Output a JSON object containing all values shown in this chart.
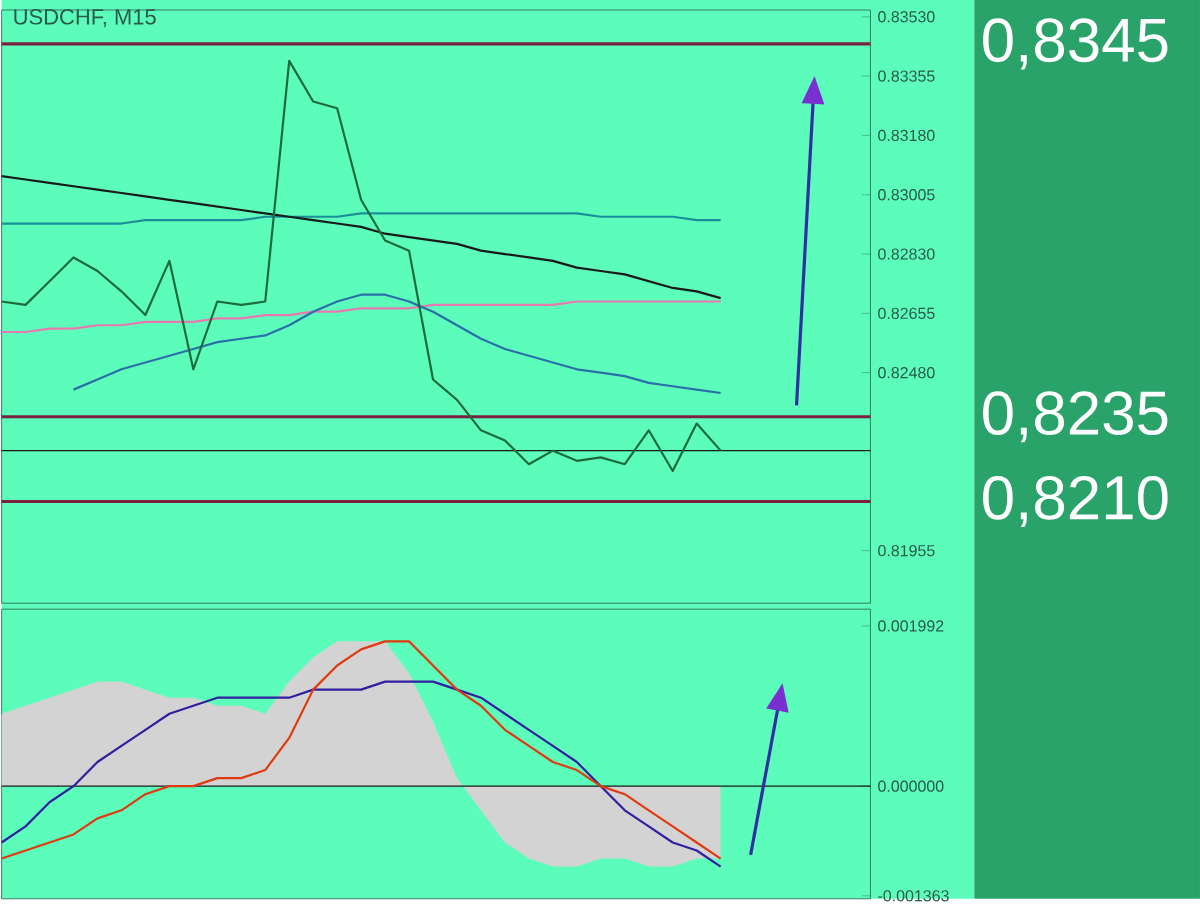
{
  "chart_data": [
    {
      "type": "line",
      "title": "USDCHF, M15",
      "tick_labels": "y",
      "categories": [
        null,
        null,
        null,
        null,
        null,
        null,
        null,
        null,
        null,
        null,
        null,
        null,
        null,
        null,
        null,
        null,
        null,
        null,
        null,
        null,
        null,
        null,
        null,
        null,
        null,
        null,
        null,
        null,
        null,
        null,
        null,
        null,
        null,
        null,
        null,
        null,
        null
      ],
      "series": [
        {
          "color": "#1a8f9a",
          "values": [
            0.8292,
            0.8292,
            0.8292,
            0.8292,
            0.8292,
            0.8292,
            0.8293,
            0.8293,
            0.8293,
            0.8293,
            0.8293,
            0.8294,
            0.8294,
            0.8294,
            0.8294,
            0.8295,
            0.8295,
            0.8295,
            0.8295,
            0.8295,
            0.8295,
            0.8295,
            0.8295,
            0.8295,
            0.8295,
            0.8294,
            0.8294,
            0.8294,
            0.8294,
            0.8293,
            0.8293,
            null,
            null,
            null,
            null,
            null,
            null
          ]
        },
        {
          "color": "#1a1a1a",
          "values": [
            0.8306,
            0.8305,
            0.8304,
            0.8303,
            0.8302,
            0.8301,
            0.83,
            0.8299,
            0.8298,
            0.8297,
            0.8296,
            0.8295,
            0.8294,
            0.8293,
            0.8292,
            0.8291,
            0.8289,
            0.8288,
            0.8287,
            0.8286,
            0.8284,
            0.8283,
            0.8282,
            0.8281,
            0.8279,
            0.8278,
            0.8277,
            0.8275,
            0.8273,
            0.8272,
            0.827,
            null,
            null,
            null,
            null,
            null,
            null
          ]
        },
        {
          "color": "#e879b0",
          "values": [
            0.826,
            0.826,
            0.8261,
            0.8261,
            0.8262,
            0.8262,
            0.8263,
            0.8263,
            0.8263,
            0.8264,
            0.8264,
            0.8265,
            0.8265,
            0.8266,
            0.8266,
            0.8267,
            0.8267,
            0.8267,
            0.8268,
            0.8268,
            0.8268,
            0.8268,
            0.8268,
            0.8268,
            0.8269,
            0.8269,
            0.8269,
            0.8269,
            0.8269,
            0.8269,
            0.8269,
            null,
            null,
            null,
            null,
            null,
            null
          ]
        },
        {
          "color": "#2a6fa8",
          "values": [
            null,
            null,
            null,
            0.8243,
            0.8246,
            0.8249,
            0.8251,
            0.8253,
            0.8255,
            0.8257,
            0.8258,
            0.8259,
            0.8262,
            0.8266,
            0.8269,
            0.8271,
            0.8271,
            0.8269,
            0.8266,
            0.8262,
            0.8258,
            0.8255,
            0.8253,
            0.8251,
            0.8249,
            0.8248,
            0.8247,
            0.8245,
            0.8244,
            0.8243,
            0.8242,
            null,
            null,
            null,
            null,
            null,
            null
          ]
        },
        {
          "color": "#1d6b3a",
          "values": [
            0.8269,
            0.8268,
            0.8275,
            0.8282,
            0.8278,
            0.8272,
            0.8265,
            0.8281,
            0.8249,
            0.8269,
            0.8268,
            0.8269,
            0.834,
            0.8328,
            0.8326,
            0.8299,
            0.8287,
            0.8284,
            0.8246,
            0.824,
            0.8231,
            0.8228,
            0.8221,
            0.8225,
            0.8222,
            0.8223,
            0.8221,
            0.8231,
            0.8219,
            0.8233,
            0.8225,
            null,
            null,
            null,
            null,
            null,
            null
          ]
        }
      ],
      "ylim": [
        0.818,
        0.8355
      ],
      "yticks": [
        {
          "value": 0.81955,
          "label": "0.81955"
        },
        {
          "value": 0.8248,
          "label": "0.82480"
        },
        {
          "value": 0.82655,
          "label": "0.82655"
        },
        {
          "value": 0.8283,
          "label": "0.82830"
        },
        {
          "value": 0.83005,
          "label": "0.83005"
        },
        {
          "value": 0.8318,
          "label": "0.83180"
        },
        {
          "value": 0.83355,
          "label": "0.83355"
        },
        {
          "value": 0.8353,
          "label": "0.83530"
        }
      ],
      "ref_lines": [
        {
          "axis": "y",
          "value": 0.8345,
          "label": "0,8345",
          "color": "#7a2040"
        },
        {
          "axis": "y",
          "value": 0.8235,
          "label": "0,8235",
          "color": "#7a2040"
        },
        {
          "axis": "y",
          "value": 0.821,
          "label": "0,8210",
          "color": "#7a2040"
        },
        {
          "axis": "y",
          "value": 0.8225,
          "color": "#1a1a1a"
        }
      ]
    },
    {
      "type": "line",
      "tick_labels": "y",
      "categories": [
        null,
        null,
        null,
        null,
        null,
        null,
        null,
        null,
        null,
        null,
        null,
        null,
        null,
        null,
        null,
        null,
        null,
        null,
        null,
        null,
        null,
        null,
        null,
        null,
        null,
        null,
        null,
        null,
        null,
        null,
        null,
        null,
        null,
        null,
        null,
        null,
        null
      ],
      "series": [
        {
          "type": "area",
          "color": "#d3d3d3",
          "values": [
            0.0009,
            0.001,
            0.0011,
            0.0012,
            0.0013,
            0.0013,
            0.0012,
            0.0011,
            0.0011,
            0.001,
            0.001,
            0.0009,
            0.0013,
            0.0016,
            0.0018,
            0.0018,
            0.0018,
            0.0014,
            0.0008,
            0.0001,
            -0.0003,
            -0.0007,
            -0.0009,
            -0.001,
            -0.001,
            -0.0009,
            -0.0009,
            -0.001,
            -0.001,
            -0.0009,
            -0.0009,
            null,
            null,
            null,
            null,
            null,
            null
          ]
        },
        {
          "color": "#3020a0",
          "values": [
            -0.0007,
            -0.0005,
            -0.0002,
            0.0,
            0.0003,
            0.0005,
            0.0007,
            0.0009,
            0.001,
            0.0011,
            0.0011,
            0.0011,
            0.0011,
            0.0012,
            0.0012,
            0.0012,
            0.0013,
            0.0013,
            0.0013,
            0.0012,
            0.0011,
            0.0009,
            0.0007,
            0.0005,
            0.0003,
            0.0,
            -0.0003,
            -0.0005,
            -0.0007,
            -0.0008,
            -0.001,
            null,
            null,
            null,
            null,
            null,
            null
          ]
        },
        {
          "color": "#e03a10",
          "values": [
            -0.0009,
            -0.0008,
            -0.0007,
            -0.0006,
            -0.0004,
            -0.0003,
            -0.0001,
            0.0,
            0.0,
            0.0001,
            0.0001,
            0.0002,
            0.0006,
            0.0012,
            0.0015,
            0.0017,
            0.0018,
            0.0018,
            0.0015,
            0.0012,
            0.001,
            0.0007,
            0.0005,
            0.0003,
            0.0002,
            0.0,
            -0.0001,
            -0.0003,
            -0.0005,
            -0.0007,
            -0.0009,
            null,
            null,
            null,
            null,
            null,
            null
          ]
        }
      ],
      "ylim": [
        -0.0014,
        0.0022
      ],
      "yticks": [
        {
          "value": -0.001363,
          "label": "-0.001363"
        },
        {
          "value": 0,
          "label": "0.000000"
        },
        {
          "value": 0.001992,
          "label": "0.001992"
        }
      ],
      "ref_lines": [
        {
          "axis": "y",
          "value": 0,
          "color": "#1a1a1a"
        }
      ]
    }
  ]
}
